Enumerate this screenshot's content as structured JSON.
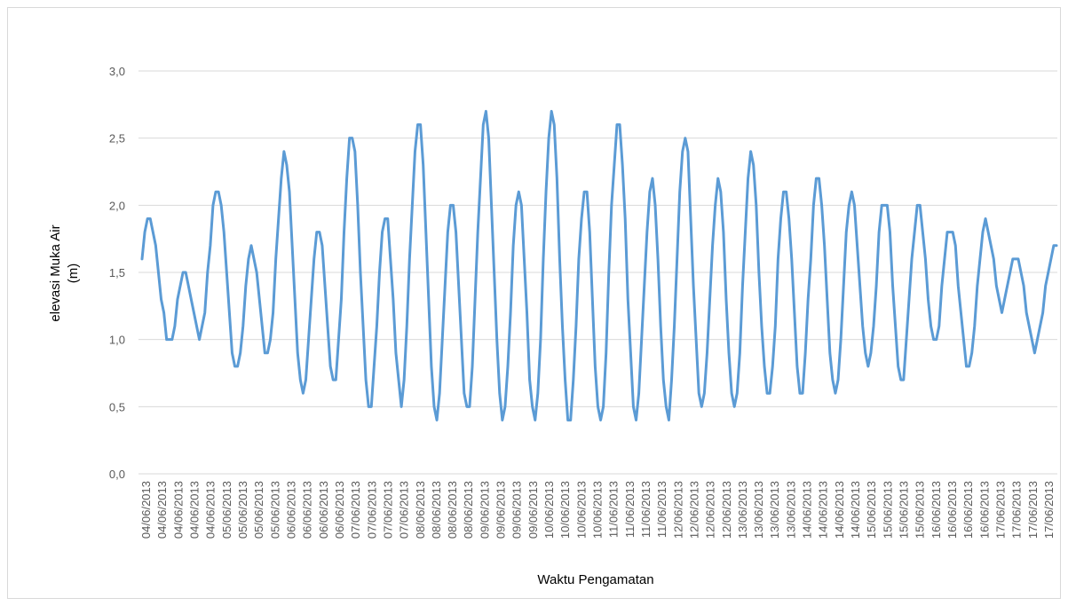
{
  "colors": {
    "series": "#5b9bd5",
    "grid": "#d9d9d9",
    "text": "#595959"
  },
  "chart_data": {
    "type": "line",
    "title": "",
    "xlabel": "Waktu Pengamatan",
    "ylabel_lines": [
      "elevasi Muka Air",
      "(m)"
    ],
    "ylim": [
      0,
      3
    ],
    "yticks": [
      "0,0",
      "0,5",
      "1,0",
      "1,5",
      "2,0",
      "2,5",
      "3,0"
    ],
    "ytick_values": [
      0,
      0.5,
      1,
      1.5,
      2,
      2.5,
      3
    ],
    "grid": true,
    "legend": "none",
    "x_tick_labels": [
      "04/06/2013",
      "04/06/2013",
      "04/06/2013",
      "04/06/2013",
      "04/06/2013",
      "05/06/2013",
      "05/06/2013",
      "05/06/2013",
      "05/06/2013",
      "06/06/2013",
      "06/06/2013",
      "06/06/2013",
      "06/06/2013",
      "07/06/2013",
      "07/06/2013",
      "07/06/2013",
      "07/06/2013",
      "08/06/2013",
      "08/06/2013",
      "08/06/2013",
      "08/06/2013",
      "09/06/2013",
      "09/06/2013",
      "09/06/2013",
      "09/06/2013",
      "10/06/2013",
      "10/06/2013",
      "10/06/2013",
      "10/06/2013",
      "11/06/2013",
      "11/06/2013",
      "11/06/2013",
      "11/06/2013",
      "12/06/2013",
      "12/06/2013",
      "12/06/2013",
      "12/06/2013",
      "13/06/2013",
      "13/06/2013",
      "13/06/2013",
      "13/06/2013",
      "14/06/2013",
      "14/06/2013",
      "14/06/2013",
      "14/06/2013",
      "15/06/2013",
      "15/06/2013",
      "15/06/2013",
      "15/06/2013",
      "16/06/2013",
      "16/06/2013",
      "16/06/2013",
      "16/06/2013",
      "17/06/2013",
      "17/06/2013",
      "17/06/2013",
      "17/06/2013"
    ],
    "series": [
      {
        "values": [
          1.6,
          1.8,
          1.9,
          1.9,
          1.8,
          1.7,
          1.5,
          1.3,
          1.2,
          1.0,
          1.0,
          1.0,
          1.1,
          1.3,
          1.4,
          1.5,
          1.5,
          1.4,
          1.3,
          1.2,
          1.1,
          1.0,
          1.1,
          1.2,
          1.5,
          1.7,
          2.0,
          2.1,
          2.1,
          2.0,
          1.8,
          1.5,
          1.2,
          0.9,
          0.8,
          0.8,
          0.9,
          1.1,
          1.4,
          1.6,
          1.7,
          1.6,
          1.5,
          1.3,
          1.1,
          0.9,
          0.9,
          1.0,
          1.2,
          1.6,
          1.9,
          2.2,
          2.4,
          2.3,
          2.1,
          1.7,
          1.3,
          0.9,
          0.7,
          0.6,
          0.7,
          1.0,
          1.3,
          1.6,
          1.8,
          1.8,
          1.7,
          1.4,
          1.1,
          0.8,
          0.7,
          0.7,
          1.0,
          1.3,
          1.8,
          2.2,
          2.5,
          2.5,
          2.4,
          2.0,
          1.5,
          1.1,
          0.7,
          0.5,
          0.5,
          0.8,
          1.1,
          1.5,
          1.8,
          1.9,
          1.9,
          1.6,
          1.3,
          0.9,
          0.7,
          0.5,
          0.7,
          1.1,
          1.6,
          2.0,
          2.4,
          2.6,
          2.6,
          2.3,
          1.8,
          1.3,
          0.8,
          0.5,
          0.4,
          0.6,
          1.0,
          1.4,
          1.8,
          2.0,
          2.0,
          1.8,
          1.4,
          1.0,
          0.6,
          0.5,
          0.5,
          0.8,
          1.3,
          1.8,
          2.2,
          2.6,
          2.7,
          2.5,
          2.0,
          1.5,
          1.0,
          0.6,
          0.4,
          0.5,
          0.8,
          1.2,
          1.7,
          2.0,
          2.1,
          2.0,
          1.6,
          1.2,
          0.7,
          0.5,
          0.4,
          0.6,
          1.0,
          1.6,
          2.1,
          2.5,
          2.7,
          2.6,
          2.2,
          1.6,
          1.1,
          0.7,
          0.4,
          0.4,
          0.7,
          1.1,
          1.6,
          1.9,
          2.1,
          2.1,
          1.8,
          1.3,
          0.8,
          0.5,
          0.4,
          0.5,
          0.9,
          1.5,
          2.0,
          2.3,
          2.6,
          2.6,
          2.3,
          1.9,
          1.3,
          0.9,
          0.5,
          0.4,
          0.6,
          1.0,
          1.4,
          1.8,
          2.1,
          2.2,
          2.0,
          1.6,
          1.1,
          0.7,
          0.5,
          0.4,
          0.7,
          1.1,
          1.6,
          2.1,
          2.4,
          2.5,
          2.4,
          1.9,
          1.4,
          1.0,
          0.6,
          0.5,
          0.6,
          0.9,
          1.3,
          1.7,
          2.0,
          2.2,
          2.1,
          1.8,
          1.3,
          0.9,
          0.6,
          0.5,
          0.6,
          0.9,
          1.4,
          1.8,
          2.2,
          2.4,
          2.3,
          2.0,
          1.5,
          1.1,
          0.8,
          0.6,
          0.6,
          0.8,
          1.1,
          1.6,
          1.9,
          2.1,
          2.1,
          1.9,
          1.6,
          1.2,
          0.8,
          0.6,
          0.6,
          0.9,
          1.3,
          1.6,
          2.0,
          2.2,
          2.2,
          2.0,
          1.7,
          1.3,
          0.9,
          0.7,
          0.6,
          0.7,
          1.0,
          1.4,
          1.8,
          2.0,
          2.1,
          2.0,
          1.7,
          1.4,
          1.1,
          0.9,
          0.8,
          0.9,
          1.1,
          1.4,
          1.8,
          2.0,
          2.0,
          2.0,
          1.8,
          1.4,
          1.1,
          0.8,
          0.7,
          0.7,
          1.0,
          1.3,
          1.6,
          1.8,
          2.0,
          2.0,
          1.8,
          1.6,
          1.3,
          1.1,
          1.0,
          1.0,
          1.1,
          1.4,
          1.6,
          1.8,
          1.8,
          1.8,
          1.7,
          1.4,
          1.2,
          1.0,
          0.8,
          0.8,
          0.9,
          1.1,
          1.4,
          1.6,
          1.8,
          1.9,
          1.8,
          1.7,
          1.6,
          1.4,
          1.3,
          1.2,
          1.3,
          1.4,
          1.5,
          1.6,
          1.6,
          1.6,
          1.5,
          1.4,
          1.2,
          1.1,
          1.0,
          0.9,
          1.0,
          1.1,
          1.2,
          1.4,
          1.5,
          1.6,
          1.7,
          1.7
        ]
      }
    ]
  }
}
